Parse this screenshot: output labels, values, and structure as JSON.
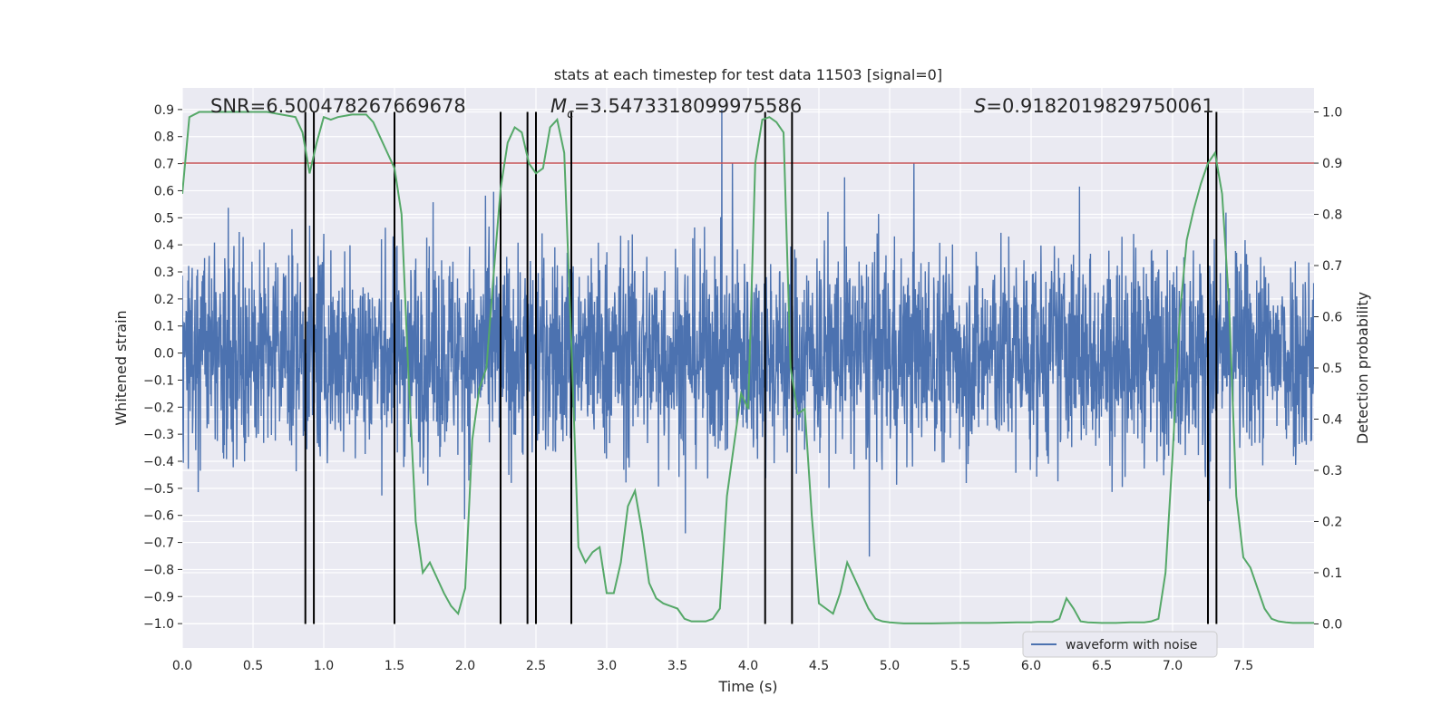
{
  "chart_data": {
    "type": "line",
    "title": "stats at each timestep for test data 11503 [signal=0]",
    "xlabel": "Time (s)",
    "ylabel": "Whitened strain",
    "y2label": "Detection probability",
    "xlim": [
      0.0,
      8.0
    ],
    "ylim": [
      -1.09,
      0.98
    ],
    "y2lim": [
      -0.047,
      1.047
    ],
    "xticks": [
      "0.0",
      "0.5",
      "1.0",
      "1.5",
      "2.0",
      "2.5",
      "3.0",
      "3.5",
      "4.0",
      "4.5",
      "5.0",
      "5.5",
      "6.0",
      "6.5",
      "7.0",
      "7.5"
    ],
    "yticks": [
      "0.9",
      "0.8",
      "0.7",
      "0.6",
      "0.5",
      "0.4",
      "0.3",
      "0.2",
      "0.1",
      "0.0",
      "−0.1",
      "−0.2",
      "−0.3",
      "−0.4",
      "−0.5",
      "−0.6",
      "−0.7",
      "−0.8",
      "−0.9",
      "−1.0"
    ],
    "y2ticks": [
      "1.0",
      "0.9",
      "0.8",
      "0.7",
      "0.6",
      "0.5",
      "0.4",
      "0.3",
      "0.2",
      "0.1",
      "0.0"
    ],
    "grid": true,
    "legend_position": "lower-right",
    "stats": {
      "snr": "SNR=6.500478267669678",
      "mc_symbol": "M",
      "mc_sub": "c",
      "mc_value": "=3.5473318099975586",
      "s_symbol": "S",
      "s_value": "=0.9182019829750061"
    },
    "threshold": 0.9,
    "series": [
      {
        "name": "waveform with noise",
        "axis": "left",
        "color": "#4c72b0",
        "envelope": "dense noise, amplitude mostly within ±0.5, spikes to about ±0.9"
      },
      {
        "axis": "right",
        "color": "#55a868",
        "x": [
          0.0,
          0.05,
          0.12,
          0.2,
          0.3,
          0.4,
          0.5,
          0.6,
          0.7,
          0.8,
          0.85,
          0.9,
          0.95,
          1.0,
          1.05,
          1.1,
          1.2,
          1.3,
          1.35,
          1.4,
          1.45,
          1.5,
          1.55,
          1.6,
          1.65,
          1.7,
          1.75,
          1.8,
          1.85,
          1.9,
          1.95,
          2.0,
          2.05,
          2.1,
          2.15,
          2.2,
          2.25,
          2.3,
          2.35,
          2.4,
          2.45,
          2.5,
          2.55,
          2.6,
          2.65,
          2.7,
          2.75,
          2.8,
          2.85,
          2.9,
          2.95,
          3.0,
          3.05,
          3.1,
          3.15,
          3.2,
          3.25,
          3.3,
          3.35,
          3.4,
          3.45,
          3.5,
          3.55,
          3.6,
          3.65,
          3.7,
          3.75,
          3.8,
          3.85,
          3.9,
          3.95,
          4.0,
          4.05,
          4.1,
          4.15,
          4.2,
          4.25,
          4.3,
          4.35,
          4.4,
          4.45,
          4.5,
          4.55,
          4.6,
          4.65,
          4.7,
          4.75,
          4.8,
          4.85,
          4.9,
          4.95,
          5.0,
          5.05,
          5.1,
          5.2,
          5.3,
          5.5,
          5.7,
          5.9,
          6.0,
          6.05,
          6.1,
          6.15,
          6.2,
          6.25,
          6.3,
          6.35,
          6.4,
          6.5,
          6.6,
          6.7,
          6.8,
          6.85,
          6.9,
          6.95,
          7.0,
          7.05,
          7.1,
          7.15,
          7.2,
          7.25,
          7.3,
          7.35,
          7.4,
          7.45,
          7.5,
          7.55,
          7.6,
          7.65,
          7.7,
          7.75,
          7.8,
          7.85,
          7.9,
          7.95,
          8.0
        ],
        "values": [
          0.84,
          0.99,
          1.0,
          1.0,
          1.0,
          1.0,
          1.0,
          1.0,
          0.995,
          0.99,
          0.96,
          0.88,
          0.94,
          0.99,
          0.985,
          0.99,
          0.995,
          0.995,
          0.98,
          0.95,
          0.92,
          0.89,
          0.8,
          0.48,
          0.2,
          0.1,
          0.12,
          0.09,
          0.06,
          0.035,
          0.02,
          0.07,
          0.36,
          0.46,
          0.5,
          0.68,
          0.85,
          0.94,
          0.97,
          0.96,
          0.9,
          0.88,
          0.89,
          0.97,
          0.985,
          0.92,
          0.55,
          0.15,
          0.12,
          0.14,
          0.15,
          0.06,
          0.06,
          0.12,
          0.23,
          0.26,
          0.18,
          0.08,
          0.05,
          0.04,
          0.035,
          0.03,
          0.01,
          0.005,
          0.005,
          0.005,
          0.01,
          0.03,
          0.25,
          0.35,
          0.45,
          0.42,
          0.9,
          0.985,
          0.99,
          0.98,
          0.96,
          0.5,
          0.41,
          0.42,
          0.21,
          0.04,
          0.03,
          0.02,
          0.06,
          0.12,
          0.09,
          0.06,
          0.03,
          0.01,
          0.005,
          0.003,
          0.002,
          0.001,
          0.001,
          0.001,
          0.002,
          0.002,
          0.003,
          0.003,
          0.004,
          0.004,
          0.004,
          0.01,
          0.05,
          0.03,
          0.005,
          0.003,
          0.002,
          0.002,
          0.003,
          0.003,
          0.005,
          0.01,
          0.1,
          0.33,
          0.6,
          0.75,
          0.81,
          0.86,
          0.9,
          0.92,
          0.84,
          0.62,
          0.25,
          0.13,
          0.11,
          0.07,
          0.03,
          0.01,
          0.005,
          0.003,
          0.002,
          0.002,
          0.002,
          0.002
        ]
      }
    ],
    "detection_boundaries": [
      0.87,
      0.93,
      1.5,
      2.25,
      2.44,
      2.5,
      2.75,
      4.12,
      4.31,
      7.25,
      7.31
    ]
  }
}
